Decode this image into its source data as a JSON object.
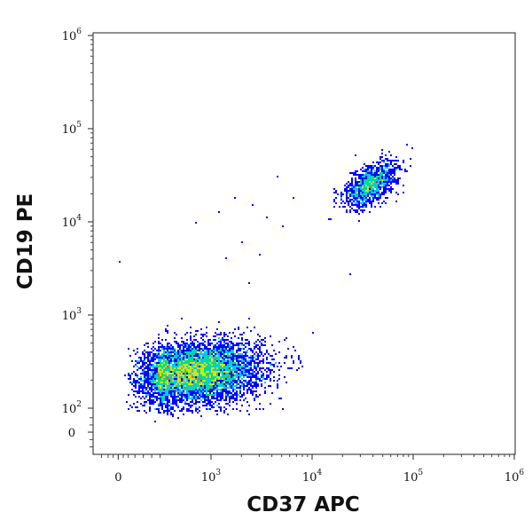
{
  "chart_data": {
    "type": "scatter",
    "style": "flow-cytometry density dot plot",
    "title": "",
    "xlabel": "CD37 APC",
    "ylabel": "CD19 PE",
    "x_scale": "biexponential (linear near 0, log10 above ~10^2)",
    "y_scale": "biexponential (linear near 0, log10 above ~10^2)",
    "xlim": [
      -150,
      1000000
    ],
    "ylim": [
      -150,
      1000000
    ],
    "x_ticks": [
      {
        "value": 0,
        "base": "0",
        "exp": ""
      },
      {
        "value": 1000,
        "base": "10",
        "exp": "3"
      },
      {
        "value": 10000,
        "base": "10",
        "exp": "4"
      },
      {
        "value": 100000,
        "base": "10",
        "exp": "5"
      },
      {
        "value": 1000000,
        "base": "10",
        "exp": "6"
      }
    ],
    "y_ticks": [
      {
        "value": 0,
        "base": "0",
        "exp": ""
      },
      {
        "value": 100,
        "base": "10",
        "exp": "2"
      },
      {
        "value": 1000,
        "base": "10",
        "exp": "3"
      },
      {
        "value": 10000,
        "base": "10",
        "exp": "4"
      },
      {
        "value": 100000,
        "base": "10",
        "exp": "5"
      },
      {
        "value": 1000000,
        "base": "10",
        "exp": "6"
      }
    ],
    "grid": false,
    "legend": "none",
    "colormap": [
      "#0000ff",
      "#00c8ff",
      "#00e070",
      "#c8f000",
      "#ffd000",
      "#ff6000",
      "#ff0000"
    ],
    "populations": [
      {
        "x_center": 700,
        "y_center": 240,
        "x_spread_decades": 0.32,
        "y_spread_decades": 0.16,
        "tilt": 0.15,
        "events": 7000
      },
      {
        "x_center": 38000,
        "y_center": 25000,
        "x_spread_decades": 0.13,
        "y_spread_decades": 0.12,
        "tilt": 0.55,
        "events": 1300
      }
    ],
    "scattered_events": [
      {
        "x": 1700,
        "y": 18000
      },
      {
        "x": 2600,
        "y": 15000
      },
      {
        "x": 4500,
        "y": 30000
      },
      {
        "x": 2000,
        "y": 6000
      },
      {
        "x": 3000,
        "y": 4500
      },
      {
        "x": 1400,
        "y": 4000
      },
      {
        "x": 2400,
        "y": 2200
      },
      {
        "x": 700,
        "y": 10000
      },
      {
        "x": 10,
        "y": 3800
      },
      {
        "x": 24000,
        "y": 2800
      },
      {
        "x": 3500,
        "y": 11000
      },
      {
        "x": 5200,
        "y": 9000
      },
      {
        "x": 1200,
        "y": 13000
      },
      {
        "x": 6500,
        "y": 18000
      }
    ]
  }
}
